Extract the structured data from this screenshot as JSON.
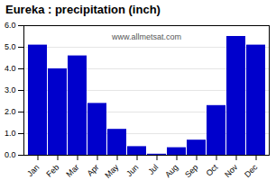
{
  "chart_data": {
    "type": "bar",
    "title": "Eureka : precipitation (inch)",
    "categories": [
      "Jan",
      "Feb",
      "Mar",
      "Apr",
      "May",
      "Jun",
      "Jul",
      "Aug",
      "Sep",
      "Oct",
      "Nov",
      "Dec"
    ],
    "values": [
      5.1,
      4.0,
      4.6,
      2.4,
      1.2,
      0.4,
      0.05,
      0.35,
      0.7,
      2.3,
      5.5,
      5.1
    ],
    "color": "#0000cc",
    "ylim": [
      0,
      6
    ],
    "yticks": [
      0,
      1,
      2,
      3,
      4,
      5,
      6
    ],
    "grid": true,
    "annotations": [
      "www.allmetsat.com"
    ]
  }
}
